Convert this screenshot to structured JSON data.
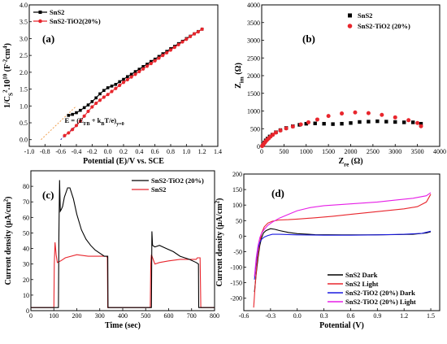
{
  "chart_data": [
    {
      "type": "line",
      "panel_label": "(a)",
      "xlabel": "Potential (E)/V vs. SCE",
      "ylabel": "1/C_S^2 .10^10 (F^-2 cm^4)",
      "xlim": [
        -1.0,
        1.4
      ],
      "ylim": [
        -0.2,
        4.0
      ],
      "xticks": [
        "-1.0",
        "-0.8",
        "-0.6",
        "-0.4",
        "-0.2",
        "0.0",
        "0.2",
        "0.4",
        "0.6",
        "0.8",
        "1.0",
        "1.2",
        "1.4"
      ],
      "yticks": [
        "0.0",
        "0.5",
        "1.0",
        "1.5",
        "2.0",
        "2.5",
        "3.0",
        "3.5",
        "4.0"
      ],
      "annotation": "E = (E_FB + k_BT/e)_{y=0}",
      "legend_position": "top-left",
      "series": [
        {
          "name": "SnS2",
          "color": "#000000",
          "marker": "square",
          "x": [
            -0.5,
            -0.45,
            -0.4,
            -0.35,
            -0.3,
            -0.25,
            -0.2,
            -0.15,
            -0.1,
            -0.05,
            0.0,
            0.05,
            0.1,
            0.15,
            0.2,
            0.25,
            0.3,
            0.35,
            0.4,
            0.45,
            0.5,
            0.55,
            0.6,
            0.65,
            0.7,
            0.75,
            0.8,
            0.85,
            0.9,
            0.95,
            1.0,
            1.05,
            1.1,
            1.15,
            1.2
          ],
          "y": [
            0.72,
            0.75,
            0.8,
            0.87,
            0.95,
            1.03,
            1.13,
            1.24,
            1.36,
            1.46,
            1.54,
            1.59,
            1.64,
            1.72,
            1.79,
            1.87,
            1.94,
            2.02,
            2.09,
            2.17,
            2.24,
            2.32,
            2.39,
            2.47,
            2.55,
            2.62,
            2.7,
            2.77,
            2.85,
            2.92,
            3.0,
            3.07,
            3.14,
            3.21,
            3.28
          ]
        },
        {
          "name": "SnS2-TiO2(20%)",
          "color": "#e8262d",
          "marker": "circle",
          "x": [
            -0.55,
            -0.5,
            -0.45,
            -0.4,
            -0.35,
            -0.3,
            -0.25,
            -0.2,
            -0.15,
            -0.1,
            -0.05,
            0.0,
            0.05,
            0.1,
            0.15,
            0.2,
            0.25,
            0.3,
            0.35,
            0.4,
            0.45,
            0.5,
            0.55,
            0.6,
            0.65,
            0.7,
            0.75,
            0.8,
            0.85,
            0.9,
            0.95,
            1.0,
            1.05,
            1.1,
            1.15,
            1.2
          ],
          "y": [
            0.12,
            0.2,
            0.3,
            0.42,
            0.55,
            0.7,
            0.84,
            0.97,
            1.08,
            1.17,
            1.26,
            1.34,
            1.43,
            1.52,
            1.61,
            1.7,
            1.78,
            1.86,
            1.94,
            2.02,
            2.1,
            2.18,
            2.26,
            2.34,
            2.42,
            2.5,
            2.58,
            2.66,
            2.74,
            2.82,
            2.9,
            2.98,
            3.06,
            3.14,
            3.2,
            3.28
          ]
        }
      ],
      "fits": [
        {
          "color": "#f0a050",
          "x": [
            -0.85,
            -0.4
          ],
          "y": [
            0.0,
            1.0
          ]
        },
        {
          "color": "#2a2aa8",
          "x": [
            -0.6,
            -0.38
          ],
          "y": [
            0.0,
            0.48
          ]
        }
      ]
    },
    {
      "type": "scatter",
      "panel_label": "(b)",
      "xlabel": "Z_re (Ω)",
      "ylabel": "Z_im (Ω)",
      "xlim": [
        0,
        4000
      ],
      "ylim": [
        0,
        4000
      ],
      "xticks": [
        "0",
        "500",
        "1000",
        "1500",
        "2000",
        "2500",
        "3000",
        "3500",
        "4000"
      ],
      "yticks": [
        "0",
        "500",
        "1000",
        "1500",
        "2000",
        "2500",
        "3000",
        "3500",
        "4000"
      ],
      "legend_position": "top-right",
      "series": [
        {
          "name": "SnS2",
          "color": "#000000",
          "marker": "square",
          "x": [
            30,
            60,
            90,
            130,
            180,
            240,
            320,
            420,
            550,
            700,
            850,
            1000,
            1200,
            1400,
            1600,
            1800,
            2000,
            2200,
            2400,
            2600,
            2800,
            3000,
            3200,
            3400,
            3580
          ],
          "y": [
            60,
            110,
            170,
            220,
            280,
            330,
            400,
            460,
            520,
            570,
            610,
            640,
            650,
            640,
            630,
            640,
            660,
            690,
            700,
            710,
            700,
            690,
            680,
            680,
            640
          ]
        },
        {
          "name": "SnS2-TiO2 (20%)",
          "color": "#e8262d",
          "marker": "circle",
          "x": [
            10,
            20,
            35,
            50,
            70,
            95,
            125,
            160,
            200,
            250,
            320,
            420,
            550,
            700,
            880,
            1050,
            1250,
            1500,
            1800,
            2100,
            2400,
            2700,
            3000,
            3300,
            3500,
            3580
          ],
          "y": [
            10,
            30,
            50,
            80,
            110,
            150,
            190,
            230,
            280,
            330,
            390,
            450,
            510,
            560,
            620,
            680,
            760,
            860,
            930,
            960,
            940,
            890,
            820,
            740,
            660,
            570
          ]
        }
      ]
    },
    {
      "type": "line",
      "panel_label": "(c)",
      "xlabel": "Time (sec)",
      "ylabel": "Current density (μA/cm^2)",
      "xlim": [
        0,
        800
      ],
      "ylim": [
        0,
        90
      ],
      "xticks": [
        "0",
        "100",
        "200",
        "300",
        "400",
        "500",
        "600",
        "700",
        "800"
      ],
      "yticks": [
        "0",
        "10",
        "20",
        "30",
        "40",
        "50",
        "60",
        "70",
        "80"
      ],
      "legend_position": "top-right",
      "series": [
        {
          "name": "SnS2-TiO2 (20%)",
          "color": "#000000",
          "x": [
            0,
            120,
            122,
            125,
            128,
            132,
            138,
            146,
            160,
            170,
            185,
            200,
            220,
            240,
            260,
            280,
            300,
            320,
            335,
            336,
            400,
            500,
            525,
            527,
            530,
            540,
            560,
            590,
            620,
            650,
            690,
            720,
            730,
            731,
            800
          ],
          "y": [
            2,
            2,
            50,
            84,
            64,
            65,
            67,
            73,
            79,
            79,
            72,
            62,
            52,
            46,
            42,
            39,
            37,
            35,
            35,
            2,
            2,
            2,
            2,
            51,
            42,
            41,
            42,
            40,
            38,
            35,
            33,
            31,
            30,
            2,
            2
          ]
        },
        {
          "name": "SnS2",
          "color": "#e8262d",
          "x": [
            0,
            100,
            102,
            105,
            110,
            115,
            130,
            150,
            200,
            250,
            300,
            330,
            333,
            335,
            400,
            500,
            520,
            522,
            525,
            530,
            540,
            560,
            600,
            650,
            690,
            720,
            725,
            730,
            737,
            740,
            800
          ],
          "y": [
            2,
            2,
            30,
            44,
            36,
            31,
            32,
            34,
            36,
            35,
            35,
            35,
            34,
            2,
            2,
            2,
            2,
            30,
            36,
            34,
            30,
            31,
            32,
            33,
            33,
            33,
            34,
            34,
            34,
            2,
            2
          ]
        }
      ]
    },
    {
      "type": "line",
      "panel_label": "(d)",
      "xlabel": "Potential (V)",
      "ylabel": "Current density (μA/cm^2)",
      "xlim": [
        -0.6,
        1.6
      ],
      "ylim": [
        -240,
        200
      ],
      "xticks": [
        "-0.6",
        "-0.3",
        "0.0",
        "0.3",
        "0.6",
        "0.9",
        "1.2",
        "1.5"
      ],
      "yticks": [
        "-200",
        "-150",
        "-100",
        "-50",
        "0",
        "50",
        "100",
        "150",
        "200"
      ],
      "legend_position": "bottom-right",
      "series": [
        {
          "name": "SnS2 Dark",
          "color": "#000000",
          "x": [
            -0.48,
            -0.46,
            -0.44,
            -0.42,
            -0.4,
            -0.38,
            -0.35,
            -0.3,
            -0.25,
            -0.2,
            -0.1,
            0.0,
            0.2,
            0.5,
            0.8,
            1.1,
            1.3,
            1.45,
            1.5
          ],
          "y": [
            -180,
            -120,
            -70,
            -30,
            -5,
            10,
            18,
            24,
            22,
            18,
            12,
            8,
            5,
            4,
            4,
            5,
            6,
            10,
            14
          ]
        },
        {
          "name": "SnS2 Light",
          "color": "#e8262d",
          "x": [
            -0.49,
            -0.47,
            -0.45,
            -0.42,
            -0.4,
            -0.37,
            -0.33,
            -0.28,
            -0.2,
            -0.1,
            0.0,
            0.2,
            0.4,
            0.6,
            0.8,
            1.0,
            1.2,
            1.35,
            1.45,
            1.5
          ],
          "y": [
            -230,
            -150,
            -80,
            -20,
            10,
            30,
            42,
            48,
            52,
            53,
            55,
            59,
            64,
            70,
            76,
            82,
            88,
            95,
            110,
            135
          ]
        },
        {
          "name": "SnS2-TiO2 (20%) Dark",
          "color": "#1a1ae0",
          "x": [
            -0.48,
            -0.46,
            -0.44,
            -0.42,
            -0.4,
            -0.37,
            -0.33,
            -0.28,
            -0.2,
            0.0,
            0.3,
            0.6,
            0.9,
            1.2,
            1.4,
            1.5
          ],
          "y": [
            -140,
            -80,
            -40,
            -20,
            -10,
            -3,
            2,
            6,
            6,
            4,
            3,
            3,
            4,
            6,
            9,
            16
          ]
        },
        {
          "name": "SnS2-TiO2 (20%) Light",
          "color": "#e61ee6",
          "x": [
            -0.48,
            -0.46,
            -0.44,
            -0.42,
            -0.4,
            -0.37,
            -0.33,
            -0.28,
            -0.2,
            -0.1,
            0.0,
            0.15,
            0.3,
            0.5,
            0.7,
            0.9,
            1.1,
            1.3,
            1.45,
            1.5
          ],
          "y": [
            -130,
            -70,
            -30,
            -5,
            10,
            22,
            35,
            45,
            58,
            70,
            82,
            92,
            98,
            102,
            106,
            110,
            116,
            122,
            130,
            140
          ]
        }
      ]
    }
  ]
}
